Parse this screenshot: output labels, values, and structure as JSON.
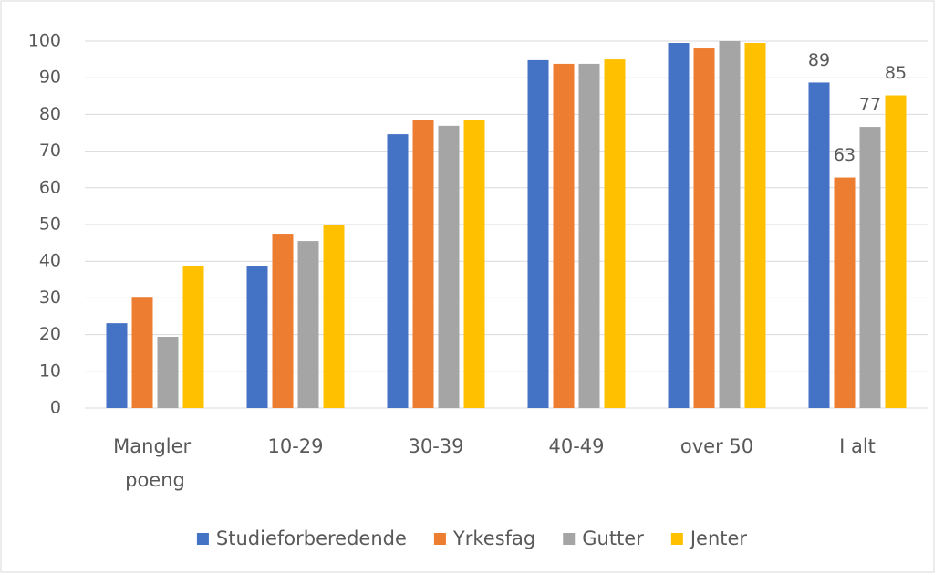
{
  "chart_data": {
    "type": "bar",
    "categories": [
      "Mangler poeng",
      "10-29",
      "30-39",
      "40-49",
      "over 50",
      "I alt"
    ],
    "series": [
      {
        "name": "Studieforberedende",
        "color": "#4472c4",
        "values": [
          23.1,
          38.8,
          74.6,
          94.8,
          99.5,
          88.7
        ],
        "value_labels": [
          null,
          null,
          null,
          null,
          null,
          "89"
        ]
      },
      {
        "name": "Yrkesfag",
        "color": "#ed7d31",
        "values": [
          30.3,
          47.5,
          78.4,
          93.8,
          98.0,
          62.8
        ],
        "value_labels": [
          null,
          null,
          null,
          null,
          null,
          "63"
        ]
      },
      {
        "name": "Gutter",
        "color": "#a5a5a5",
        "values": [
          19.4,
          45.5,
          76.9,
          93.8,
          100,
          76.6
        ],
        "value_labels": [
          null,
          null,
          null,
          null,
          null,
          "77"
        ]
      },
      {
        "name": "Jenter",
        "color": "#ffc000",
        "values": [
          38.8,
          50.0,
          78.4,
          95.0,
          99.5,
          85.2
        ],
        "value_labels": [
          null,
          null,
          null,
          null,
          null,
          "85"
        ]
      }
    ],
    "ylim": [
      0,
      100
    ],
    "yticks": [
      0,
      10,
      20,
      30,
      40,
      50,
      60,
      70,
      80,
      90,
      100
    ],
    "grid": true,
    "legend": "bottom"
  }
}
